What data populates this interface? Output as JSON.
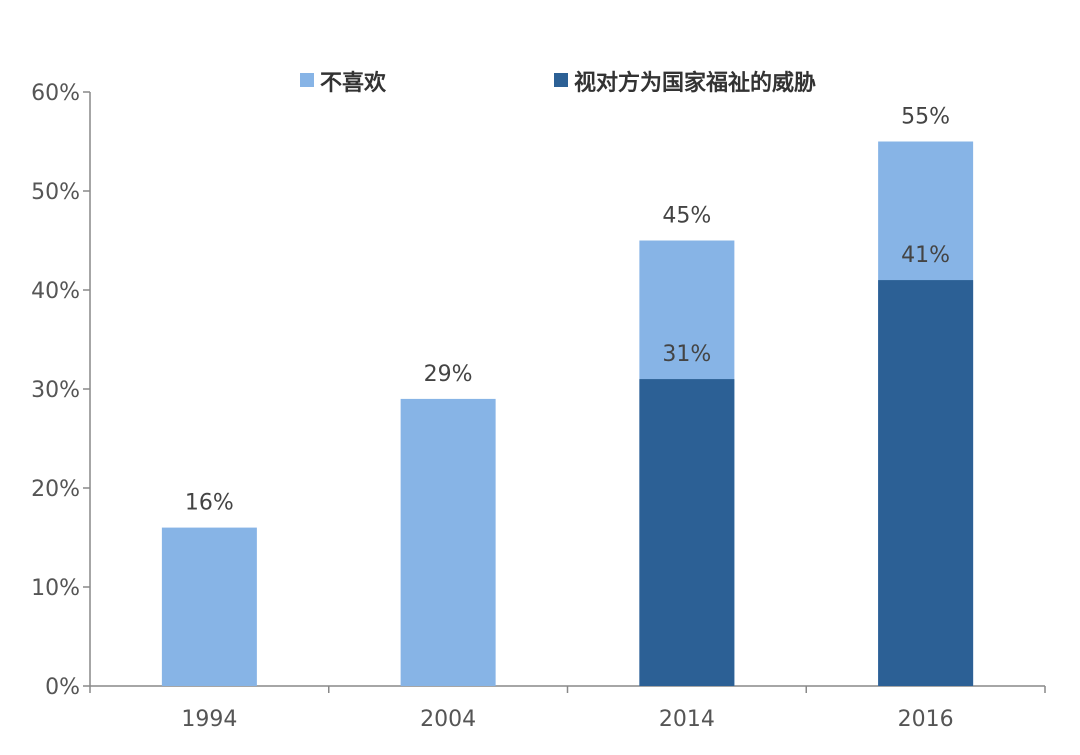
{
  "chart_data": {
    "type": "bar",
    "stacked": false,
    "overlapping": true,
    "categories": [
      "1994",
      "2004",
      "2014",
      "2016"
    ],
    "series": [
      {
        "name": "不喜欢",
        "color": "#87B4E6",
        "values": [
          16,
          29,
          45,
          55
        ],
        "labels": [
          "16%",
          "29%",
          "45%",
          "55%"
        ]
      },
      {
        "name": "视对方为国家福祉的威胁",
        "color": "#2C6095",
        "values": [
          null,
          null,
          31,
          41
        ],
        "labels": [
          "",
          "",
          "31%",
          "41%"
        ]
      }
    ],
    "yticks": [
      "0%",
      "10%",
      "20%",
      "30%",
      "40%",
      "50%",
      "60%"
    ],
    "ylim": [
      0,
      60
    ],
    "unit": "%",
    "grid": false,
    "legend_position": "top",
    "axis_color": "#888888"
  }
}
